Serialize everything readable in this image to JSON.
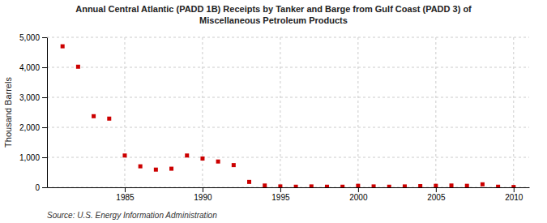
{
  "chart_data": {
    "type": "scatter",
    "title": "Annual Central Atlantic (PADD 1B) Receipts by Tanker and Barge from Gulf Coast (PADD 3) of\nMiscellaneous Petroleum Products",
    "ylabel": "Thousand Barrels",
    "source": "Source: U.S. Energy Information Administration",
    "x": [
      1981,
      1982,
      1983,
      1984,
      1985,
      1986,
      1987,
      1988,
      1989,
      1990,
      1991,
      1992,
      1993,
      1994,
      1995,
      1996,
      1997,
      1998,
      1999,
      2000,
      2001,
      2002,
      2003,
      2004,
      2005,
      2006,
      2007,
      2008,
      2009,
      2010
    ],
    "values": [
      4700,
      4020,
      2370,
      2290,
      1060,
      700,
      590,
      620,
      1060,
      960,
      860,
      740,
      180,
      60,
      30,
      20,
      30,
      20,
      20,
      50,
      30,
      20,
      30,
      40,
      50,
      60,
      50,
      100,
      20,
      10
    ],
    "color": "#cc0000",
    "marker": "square",
    "xlim": [
      1980,
      2011
    ],
    "ylim": [
      0,
      5000
    ],
    "xticks": [
      1985,
      1990,
      1995,
      2000,
      2005,
      2010
    ],
    "yticks": [
      0,
      {
        "value": 1000,
        "label": "1,000"
      },
      {
        "value": 2000,
        "label": "2,000"
      },
      {
        "value": 3000,
        "label": "3,000"
      },
      {
        "value": 4000,
        "label": "4,000"
      },
      {
        "value": 5000,
        "label": "5,000"
      }
    ],
    "grid": true
  }
}
